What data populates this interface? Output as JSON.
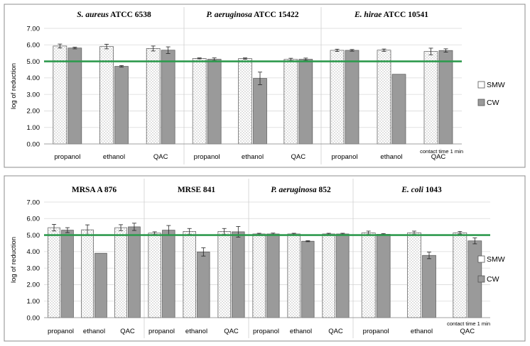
{
  "chart_data": [
    {
      "type": "bar",
      "ylabel": "log of reduction",
      "ylim": [
        0,
        7
      ],
      "yticks": [
        "0.00",
        "1.00",
        "2.00",
        "3.00",
        "4.00",
        "5.00",
        "6.00",
        "7.00"
      ],
      "threshold": 5.0,
      "threshold_color": "#2e9a4e",
      "grid": true,
      "legend_position": "right",
      "note": "contact time  1 min",
      "groups": [
        {
          "title_italic": "S. aureus",
          "title_rest": " ATCC 6538",
          "categories": [
            "propanol",
            "ethanol",
            "QAC"
          ]
        },
        {
          "title_italic": "P. aeruginosa",
          "title_rest": " ATCC 15422",
          "categories": [
            "propanol",
            "ethanol",
            "QAC"
          ]
        },
        {
          "title_italic": "E. hirae",
          "title_rest": " ATCC 10541",
          "categories": [
            "propanol",
            "ethanol",
            "QAC"
          ]
        }
      ],
      "series": [
        {
          "name": "SMW",
          "pattern": "dots",
          "values": [
            5.93,
            5.9,
            5.78,
            5.18,
            5.17,
            5.12,
            5.67,
            5.68,
            5.6
          ],
          "errors": [
            0.12,
            0.14,
            0.15,
            0.03,
            0.04,
            0.07,
            0.07,
            0.07,
            0.2
          ]
        },
        {
          "name": "CW",
          "pattern": "solid",
          "values": [
            5.81,
            4.7,
            5.68,
            5.13,
            3.97,
            5.13,
            5.67,
            4.22,
            5.66
          ],
          "errors": [
            0.05,
            0.05,
            0.2,
            0.08,
            0.38,
            0.07,
            0.05,
            0.0,
            0.1
          ]
        }
      ]
    },
    {
      "type": "bar",
      "ylabel": "log of reduction",
      "ylim": [
        0,
        7
      ],
      "yticks": [
        "0.00",
        "1.00",
        "2.00",
        "3.00",
        "4.00",
        "5.00",
        "6.00",
        "7.00"
      ],
      "threshold": 5.0,
      "threshold_color": "#2e9a4e",
      "grid": true,
      "legend_position": "right",
      "note": "contact time 1 min",
      "groups": [
        {
          "title_italic": "",
          "title_rest": "MRSA A 876",
          "categories": [
            "propanol",
            "ethanol",
            "QAC"
          ]
        },
        {
          "title_italic": "",
          "title_rest": "MRSE 841",
          "categories": [
            "propanol",
            "ethanol",
            "QAC"
          ]
        },
        {
          "title_italic": "P. aeruginosa",
          "title_rest": " 852",
          "categories": [
            "propanol",
            "ethanol",
            "QAC"
          ]
        },
        {
          "title_italic": "E. coli",
          "title_rest": " 1043",
          "categories": [
            "propanol",
            "ethanol",
            "QAC"
          ]
        }
      ],
      "series": [
        {
          "name": "SMW",
          "pattern": "dots",
          "values": [
            5.45,
            5.32,
            5.45,
            5.12,
            5.22,
            5.22,
            5.07,
            5.07,
            5.07,
            5.14,
            5.14,
            5.14
          ],
          "errors": [
            0.2,
            0.3,
            0.18,
            0.08,
            0.18,
            0.18,
            0.04,
            0.04,
            0.04,
            0.1,
            0.1,
            0.08
          ]
        },
        {
          "name": "CW",
          "pattern": "solid",
          "values": [
            5.3,
            3.9,
            5.5,
            5.3,
            3.98,
            5.2,
            5.07,
            4.63,
            5.07,
            5.05,
            3.77,
            4.65
          ],
          "errors": [
            0.15,
            0.0,
            0.22,
            0.28,
            0.25,
            0.32,
            0.05,
            0.03,
            0.04,
            0.04,
            0.2,
            0.18
          ]
        }
      ]
    }
  ]
}
